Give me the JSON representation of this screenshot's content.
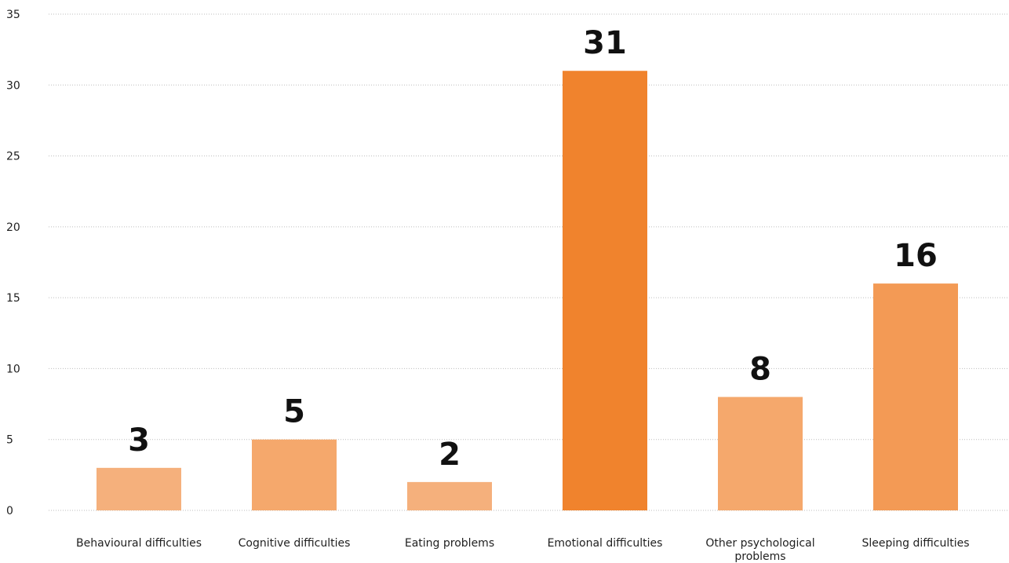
{
  "chart_data": {
    "type": "bar",
    "title": "",
    "xlabel": "",
    "ylabel": "",
    "categories": [
      "Behavioural difficulties",
      "Cognitive difficulties",
      "Eating problems",
      "Emotional difficulties",
      "Other psychological problems",
      "Sleeping difficulties"
    ],
    "values": [
      3,
      5,
      2,
      31,
      8,
      16
    ],
    "data_labels": [
      "3",
      "5",
      "2",
      "31",
      "8",
      "16"
    ],
    "ylim": [
      0,
      35
    ],
    "y_ticks": [
      0,
      5,
      10,
      15,
      20,
      25,
      30,
      35
    ],
    "grid": true,
    "grid_style": "dotted",
    "legend": "none",
    "bar_colors": [
      "#f5b07c",
      "#f5a86c",
      "#f5b07c",
      "#f0832d",
      "#f5a86c",
      "#f39a55"
    ]
  }
}
